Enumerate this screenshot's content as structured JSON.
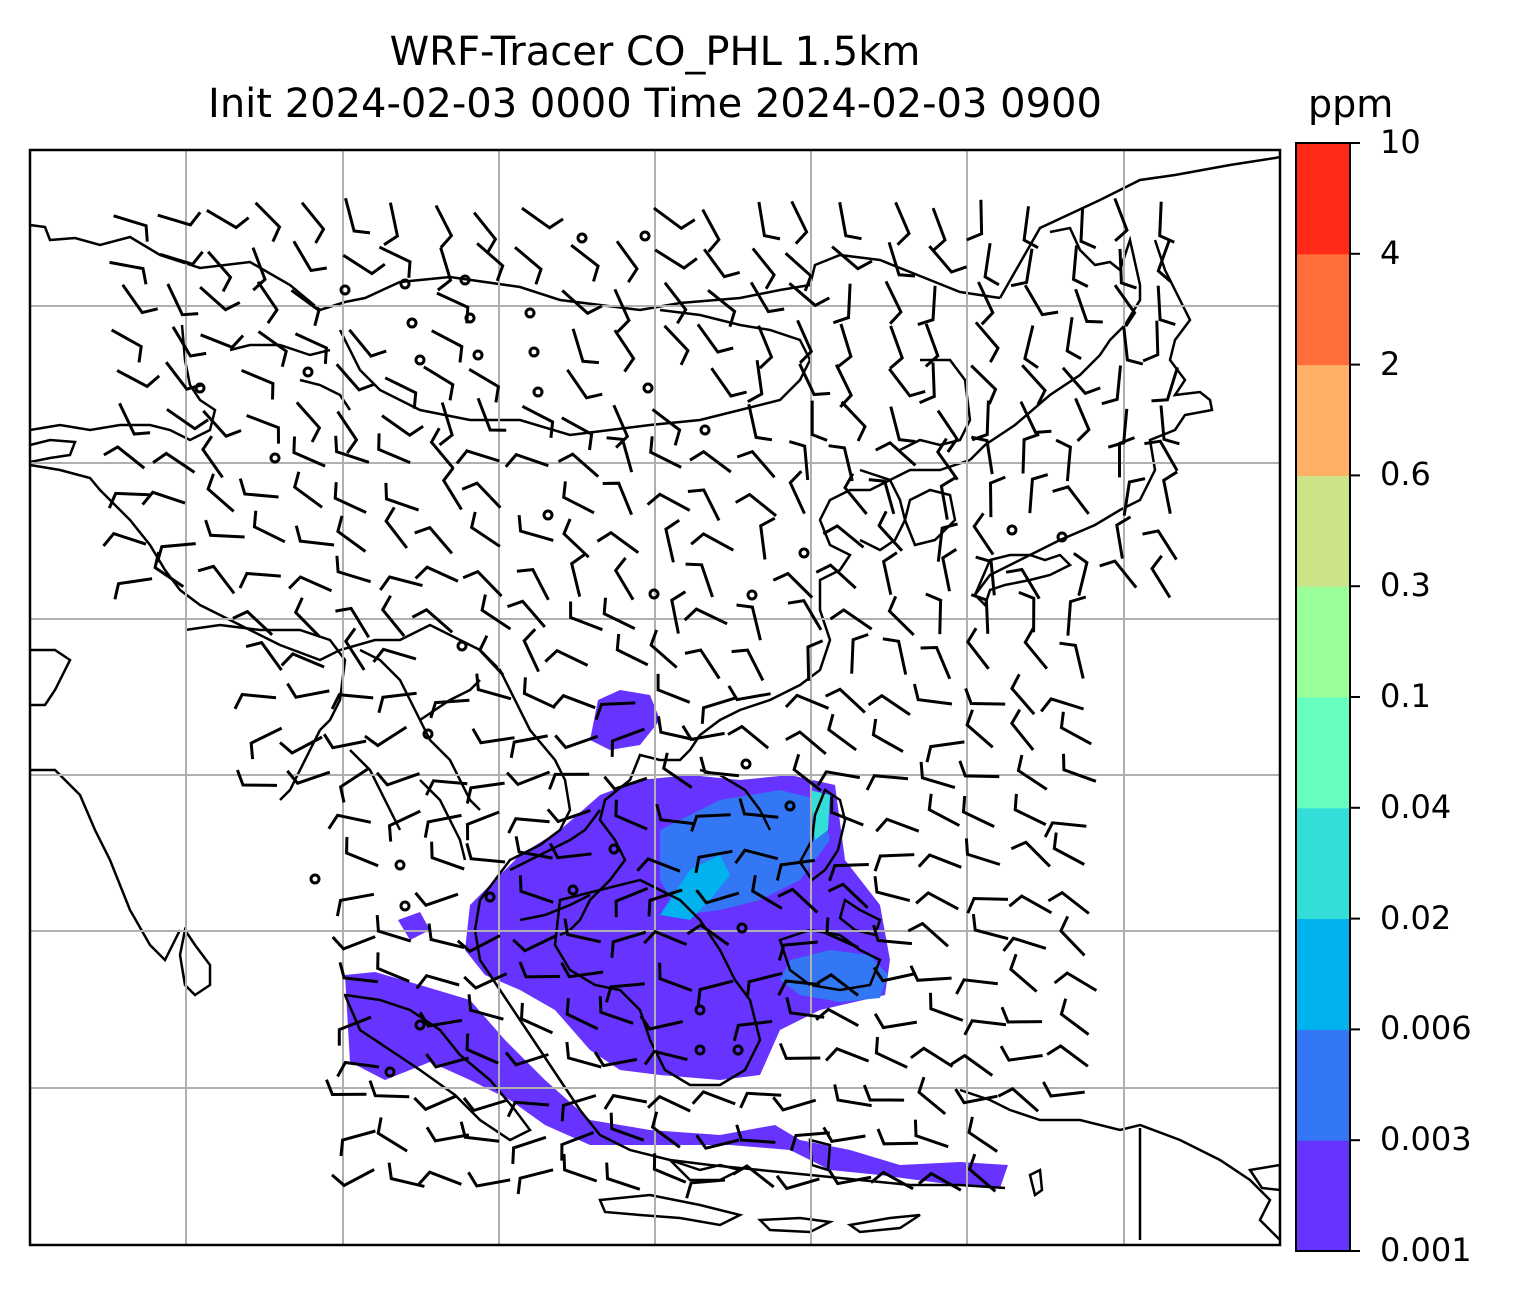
{
  "title": {
    "line1": "WRF-Tracer CO_PHL 1.5km",
    "line2": "Init 2024-02-03 0000 Time 2024-02-03 0900"
  },
  "colorbar": {
    "unit": "ppm",
    "levels": [
      "0.001",
      "0.003",
      "0.006",
      "0.02",
      "0.04",
      "0.1",
      "0.3",
      "0.6",
      "2",
      "4",
      "10"
    ],
    "colors": [
      "#6633ff",
      "#3377f5",
      "#00b2ee",
      "#33ddd8",
      "#66ffc0",
      "#99ff99",
      "#cce388",
      "#ffb066",
      "#ff6e3a",
      "#ff2a18"
    ]
  },
  "map": {
    "field": "CO tracer concentration",
    "gridlines": true,
    "wind_barbs": true
  }
}
